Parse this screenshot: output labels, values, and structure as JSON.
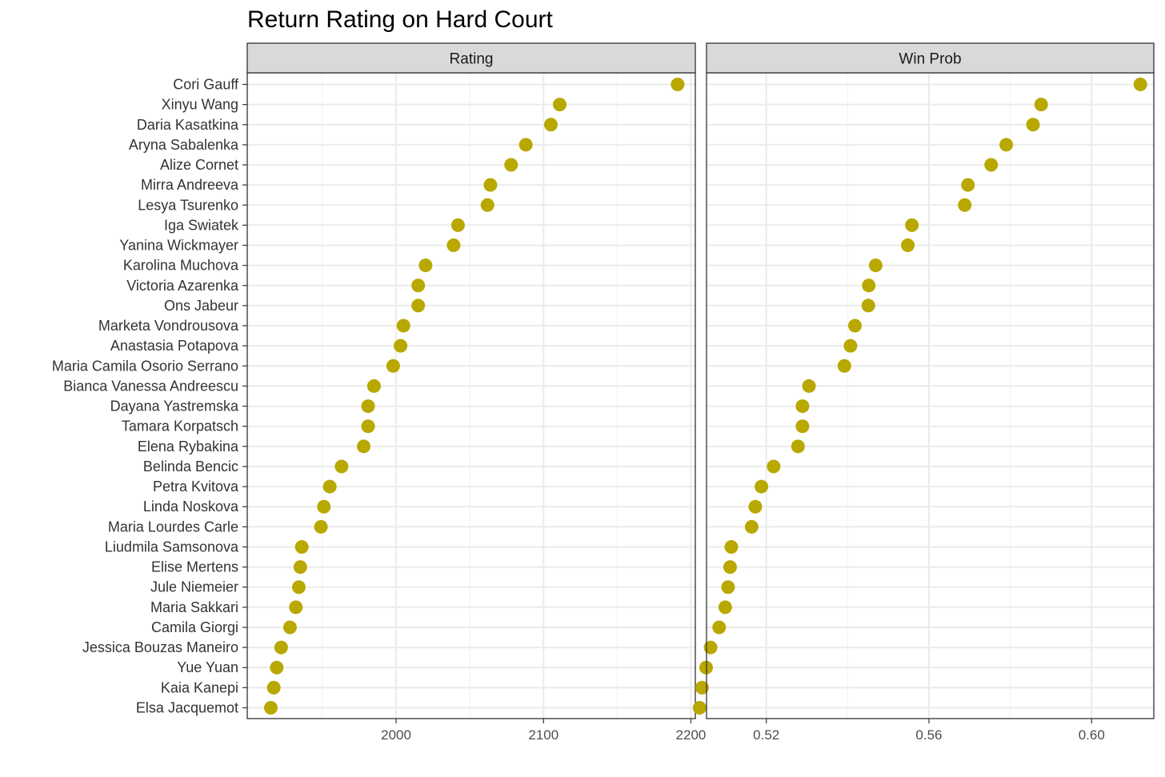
{
  "chart_data": {
    "type": "scatter",
    "title": "Return Rating on Hard Court",
    "point_color": "#b8a800",
    "players": [
      "Cori Gauff",
      "Xinyu Wang",
      "Daria Kasatkina",
      "Aryna Sabalenka",
      "Alize Cornet",
      "Mirra Andreeva",
      "Lesya Tsurenko",
      "Iga Swiatek",
      "Yanina Wickmayer",
      "Karolina Muchova",
      "Victoria Azarenka",
      "Ons Jabeur",
      "Marketa Vondrousova",
      "Anastasia Potapova",
      "Maria Camila Osorio Serrano",
      "Bianca Vanessa Andreescu",
      "Dayana Yastremska",
      "Tamara Korpatsch",
      "Elena Rybakina",
      "Belinda Bencic",
      "Petra Kvitova",
      "Linda Noskova",
      "Maria Lourdes Carle",
      "Liudmila Samsonova",
      "Elise Mertens",
      "Jule Niemeier",
      "Maria Sakkari",
      "Camila Giorgi",
      "Jessica Bouzas Maneiro",
      "Yue Yuan",
      "Kaia Kanepi",
      "Elsa Jacquemot"
    ],
    "panels": [
      {
        "strip": "Rating",
        "xlim": [
          1899,
          2203
        ],
        "x_ticks": [
          2000,
          2100,
          2200
        ],
        "x_tick_labels": [
          "2000",
          "2100",
          "2200"
        ],
        "values": [
          2191,
          2111,
          2105,
          2088,
          2078,
          2064,
          2062,
          2042,
          2039,
          2020,
          2015,
          2015,
          2005,
          2003,
          1998,
          1985,
          1981,
          1981,
          1978,
          1963,
          1955,
          1951,
          1949,
          1936,
          1935,
          1934,
          1932,
          1928,
          1922,
          1919,
          1917,
          1915
        ]
      },
      {
        "strip": "Win Prob",
        "xlim": [
          0.5053,
          0.6153
        ],
        "x_ticks": [
          0.52,
          0.56,
          0.6
        ],
        "x_tick_labels": [
          "0.52",
          "0.56",
          "0.60"
        ],
        "values": [
          0.612,
          0.5876,
          0.5856,
          0.579,
          0.5753,
          0.5696,
          0.5688,
          0.5558,
          0.5548,
          0.5469,
          0.5452,
          0.5451,
          0.5418,
          0.5407,
          0.5392,
          0.5305,
          0.5289,
          0.5289,
          0.5278,
          0.5218,
          0.5188,
          0.5173,
          0.5164,
          0.5114,
          0.5111,
          0.5106,
          0.5099,
          0.5084,
          0.5063,
          0.5052,
          0.5042,
          0.5036
        ]
      }
    ]
  }
}
